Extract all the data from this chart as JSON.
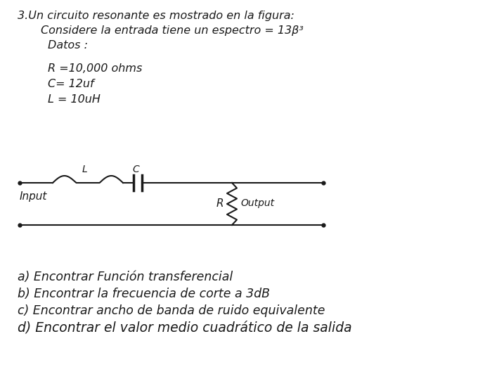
{
  "background_color": "#ffffff",
  "title_line1": "3.Un circuito resonante es mostrado en la figura:",
  "title_line2": "Considere la entrada tiene un espectro = 13β³",
  "title_line3": "Datos :",
  "data_line1": "R =10,000 ohms",
  "data_line2": "C= 12uf",
  "data_line3": "L = 10uH",
  "questions": [
    "a) Encontrar Función transferencial",
    "b) Encontrar la frecuencia de corte a 3dB",
    "c) Encontrar ancho de banda de ruido equivalente",
    "d) Encontrar el valor medio cuadrático de la salida"
  ],
  "circuit_label_L": "L",
  "circuit_label_C": "C",
  "circuit_label_R": "R",
  "circuit_label_input": "Input",
  "circuit_label_output": "Output",
  "text_color": "#1a1a1a",
  "font_size_header": 11.5,
  "font_size_data": 11.5,
  "font_size_questions": 12.5
}
